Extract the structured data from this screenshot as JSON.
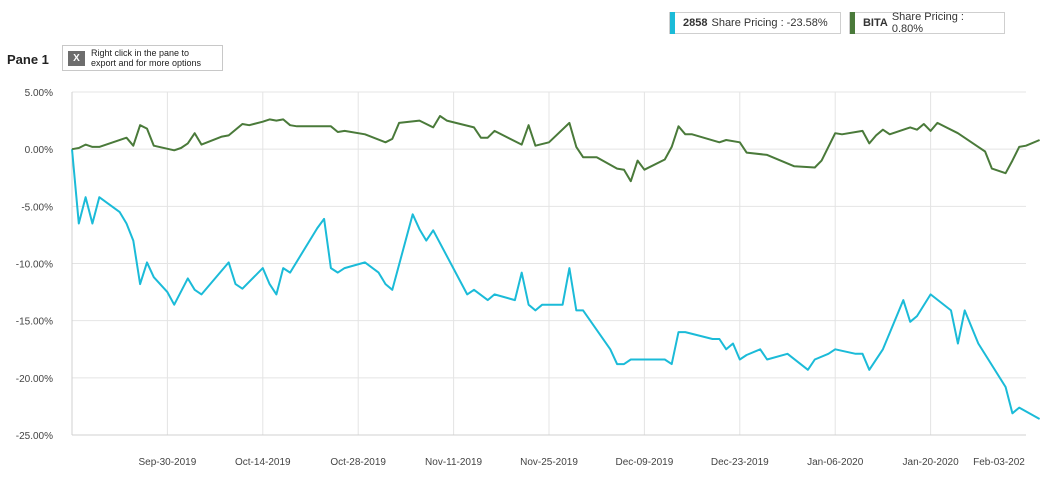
{
  "legend": {
    "series1": {
      "ticker": "2858",
      "text": "Share Pricing : -23.58%",
      "color": "#1bbbd8"
    },
    "series2": {
      "ticker": "BITA",
      "text": "Share Pricing : 0.80%",
      "color": "#4a7a3a"
    }
  },
  "pane": {
    "title": "Pane 1",
    "hint_line1": "Right click in the pane to",
    "hint_line2": "export and for more options",
    "hint_icon": "excel-icon"
  },
  "chart_data": {
    "type": "line",
    "grid": true,
    "y_tick_labels": [
      "5.00%",
      "0.00%",
      "-5.00%",
      "-10.00%",
      "-15.00%",
      "-20.00%",
      "-25.00%"
    ],
    "y_ticks": [
      5,
      0,
      -5,
      -10,
      -15,
      -20,
      -25
    ],
    "ylim": [
      -25,
      5
    ],
    "x_tick_labels": [
      "Sep-30-2019",
      "Oct-14-2019",
      "Oct-28-2019",
      "Nov-11-2019",
      "Nov-25-2019",
      "Dec-09-2019",
      "Dec-23-2019",
      "Jan-06-2020",
      "Jan-20-2020",
      "Feb-03-202"
    ],
    "x_ticks": [
      "2019-09-30",
      "2019-10-14",
      "2019-10-28",
      "2019-11-11",
      "2019-11-25",
      "2019-12-09",
      "2019-12-23",
      "2020-01-06",
      "2020-01-20",
      "2020-02-03"
    ],
    "xlim": [
      "2019-09-16",
      "2020-02-03"
    ],
    "series": [
      {
        "name": "2858",
        "color": "#1bbbd8",
        "points": [
          [
            "2019-09-16",
            0
          ],
          [
            "2019-09-17",
            -6.5
          ],
          [
            "2019-09-18",
            -4.2
          ],
          [
            "2019-09-19",
            -6.5
          ],
          [
            "2019-09-20",
            -4.2
          ],
          [
            "2019-09-23",
            -5.5
          ],
          [
            "2019-09-24",
            -6.5
          ],
          [
            "2019-09-25",
            -8.0
          ],
          [
            "2019-09-26",
            -11.8
          ],
          [
            "2019-09-27",
            -9.9
          ],
          [
            "2019-09-28",
            -11.2
          ],
          [
            "2019-09-30",
            -12.5
          ],
          [
            "2019-10-01",
            -13.6
          ],
          [
            "2019-10-03",
            -11.3
          ],
          [
            "2019-10-04",
            -12.3
          ],
          [
            "2019-10-05",
            -12.7
          ],
          [
            "2019-10-09",
            -9.9
          ],
          [
            "2019-10-10",
            -11.8
          ],
          [
            "2019-10-11",
            -12.2
          ],
          [
            "2019-10-14",
            -10.4
          ],
          [
            "2019-10-15",
            -11.8
          ],
          [
            "2019-10-16",
            -12.7
          ],
          [
            "2019-10-17",
            -10.4
          ],
          [
            "2019-10-18",
            -10.8
          ],
          [
            "2019-10-22",
            -6.9
          ],
          [
            "2019-10-23",
            -6.1
          ],
          [
            "2019-10-24",
            -10.4
          ],
          [
            "2019-10-25",
            -10.8
          ],
          [
            "2019-10-26",
            -10.4
          ],
          [
            "2019-10-29",
            -9.9
          ],
          [
            "2019-10-31",
            -10.8
          ],
          [
            "2019-11-01",
            -11.8
          ],
          [
            "2019-11-02",
            -12.3
          ],
          [
            "2019-11-05",
            -5.7
          ],
          [
            "2019-11-06",
            -7.0
          ],
          [
            "2019-11-07",
            -8.0
          ],
          [
            "2019-11-08",
            -7.1
          ],
          [
            "2019-11-13",
            -12.7
          ],
          [
            "2019-11-14",
            -12.3
          ],
          [
            "2019-11-16",
            -13.2
          ],
          [
            "2019-11-17",
            -12.7
          ],
          [
            "2019-11-20",
            -13.2
          ],
          [
            "2019-11-21",
            -10.8
          ],
          [
            "2019-11-22",
            -13.6
          ],
          [
            "2019-11-23",
            -14.1
          ],
          [
            "2019-11-24",
            -13.6
          ],
          [
            "2019-11-27",
            -13.6
          ],
          [
            "2019-11-28",
            -10.4
          ],
          [
            "2019-11-29",
            -14.1
          ],
          [
            "2019-11-30",
            -14.1
          ],
          [
            "2019-12-04",
            -17.5
          ],
          [
            "2019-12-05",
            -18.8
          ],
          [
            "2019-12-06",
            -18.8
          ],
          [
            "2019-12-07",
            -18.4
          ],
          [
            "2019-12-12",
            -18.4
          ],
          [
            "2019-12-13",
            -18.8
          ],
          [
            "2019-12-14",
            -16.0
          ],
          [
            "2019-12-15",
            -16.0
          ],
          [
            "2019-12-19",
            -16.6
          ],
          [
            "2019-12-20",
            -16.6
          ],
          [
            "2019-12-21",
            -17.5
          ],
          [
            "2019-12-22",
            -17.0
          ],
          [
            "2019-12-23",
            -18.4
          ],
          [
            "2019-12-24",
            -18.0
          ],
          [
            "2019-12-26",
            -17.5
          ],
          [
            "2019-12-27",
            -18.4
          ],
          [
            "2019-12-30",
            -17.9
          ],
          [
            "2020-01-02",
            -19.3
          ],
          [
            "2020-01-03",
            -18.4
          ],
          [
            "2020-01-05",
            -17.9
          ],
          [
            "2020-01-06",
            -17.5
          ],
          [
            "2020-01-09",
            -17.9
          ],
          [
            "2020-01-10",
            -17.9
          ],
          [
            "2020-01-11",
            -19.3
          ],
          [
            "2020-01-13",
            -17.5
          ],
          [
            "2020-01-16",
            -13.2
          ],
          [
            "2020-01-17",
            -15.1
          ],
          [
            "2020-01-18",
            -14.6
          ],
          [
            "2020-01-20",
            -12.7
          ],
          [
            "2020-01-23",
            -14.1
          ],
          [
            "2020-01-24",
            -17.0
          ],
          [
            "2020-01-25",
            -14.1
          ],
          [
            "2020-01-27",
            -17.0
          ],
          [
            "2020-01-31",
            -20.8
          ],
          [
            "2020-02-01",
            -23.1
          ],
          [
            "2020-02-02",
            -22.6
          ],
          [
            "2020-02-05",
            -23.6
          ]
        ]
      },
      {
        "name": "BITA",
        "color": "#4a7a3a",
        "points": [
          [
            "2019-09-16",
            0
          ],
          [
            "2019-09-17",
            0.1
          ],
          [
            "2019-09-18",
            0.4
          ],
          [
            "2019-09-19",
            0.2
          ],
          [
            "2019-09-20",
            0.2
          ],
          [
            "2019-09-24",
            1.0
          ],
          [
            "2019-09-25",
            0.3
          ],
          [
            "2019-09-26",
            2.1
          ],
          [
            "2019-09-27",
            1.8
          ],
          [
            "2019-09-28",
            0.3
          ],
          [
            "2019-10-01",
            -0.1
          ],
          [
            "2019-10-02",
            0.1
          ],
          [
            "2019-10-03",
            0.5
          ],
          [
            "2019-10-04",
            1.4
          ],
          [
            "2019-10-05",
            0.4
          ],
          [
            "2019-10-08",
            1.1
          ],
          [
            "2019-10-09",
            1.2
          ],
          [
            "2019-10-11",
            2.2
          ],
          [
            "2019-10-12",
            2.1
          ],
          [
            "2019-10-14",
            2.4
          ],
          [
            "2019-10-15",
            2.6
          ],
          [
            "2019-10-16",
            2.5
          ],
          [
            "2019-10-17",
            2.6
          ],
          [
            "2019-10-18",
            2.1
          ],
          [
            "2019-10-19",
            2.0
          ],
          [
            "2019-10-24",
            2.0
          ],
          [
            "2019-10-25",
            1.5
          ],
          [
            "2019-10-26",
            1.6
          ],
          [
            "2019-10-29",
            1.3
          ],
          [
            "2019-11-01",
            0.6
          ],
          [
            "2019-11-02",
            0.9
          ],
          [
            "2019-11-03",
            2.3
          ],
          [
            "2019-11-06",
            2.5
          ],
          [
            "2019-11-08",
            1.9
          ],
          [
            "2019-11-09",
            2.9
          ],
          [
            "2019-11-10",
            2.5
          ],
          [
            "2019-11-14",
            1.9
          ],
          [
            "2019-11-15",
            1.0
          ],
          [
            "2019-11-16",
            1.0
          ],
          [
            "2019-11-17",
            1.6
          ],
          [
            "2019-11-21",
            0.4
          ],
          [
            "2019-11-22",
            2.1
          ],
          [
            "2019-11-23",
            0.3
          ],
          [
            "2019-11-25",
            0.6
          ],
          [
            "2019-11-28",
            2.3
          ],
          [
            "2019-11-29",
            0.2
          ],
          [
            "2019-11-30",
            -0.7
          ],
          [
            "2019-12-02",
            -0.7
          ],
          [
            "2019-12-05",
            -1.7
          ],
          [
            "2019-12-06",
            -1.8
          ],
          [
            "2019-12-07",
            -2.8
          ],
          [
            "2019-12-08",
            -1.0
          ],
          [
            "2019-12-09",
            -1.8
          ],
          [
            "2019-12-12",
            -0.9
          ],
          [
            "2019-12-13",
            0.2
          ],
          [
            "2019-12-14",
            2.0
          ],
          [
            "2019-12-15",
            1.3
          ],
          [
            "2019-12-16",
            1.3
          ],
          [
            "2019-12-20",
            0.6
          ],
          [
            "2019-12-21",
            0.8
          ],
          [
            "2019-12-23",
            0.6
          ],
          [
            "2019-12-24",
            -0.3
          ],
          [
            "2019-12-27",
            -0.5
          ],
          [
            "2019-12-31",
            -1.5
          ],
          [
            "2020-01-03",
            -1.6
          ],
          [
            "2020-01-04",
            -1.0
          ],
          [
            "2020-01-06",
            1.4
          ],
          [
            "2020-01-07",
            1.3
          ],
          [
            "2020-01-10",
            1.6
          ],
          [
            "2020-01-11",
            0.5
          ],
          [
            "2020-01-12",
            1.2
          ],
          [
            "2020-01-13",
            1.7
          ],
          [
            "2020-01-14",
            1.3
          ],
          [
            "2020-01-17",
            1.9
          ],
          [
            "2020-01-18",
            1.7
          ],
          [
            "2020-01-19",
            2.2
          ],
          [
            "2020-01-20",
            1.6
          ],
          [
            "2020-01-21",
            2.3
          ],
          [
            "2020-01-24",
            1.4
          ],
          [
            "2020-01-27",
            0.2
          ],
          [
            "2020-01-28",
            -0.2
          ],
          [
            "2020-01-29",
            -1.7
          ],
          [
            "2020-01-31",
            -2.1
          ],
          [
            "2020-02-01",
            -1.0
          ],
          [
            "2020-02-02",
            0.2
          ],
          [
            "2020-02-03",
            0.3
          ],
          [
            "2020-02-05",
            0.8
          ]
        ]
      }
    ]
  }
}
